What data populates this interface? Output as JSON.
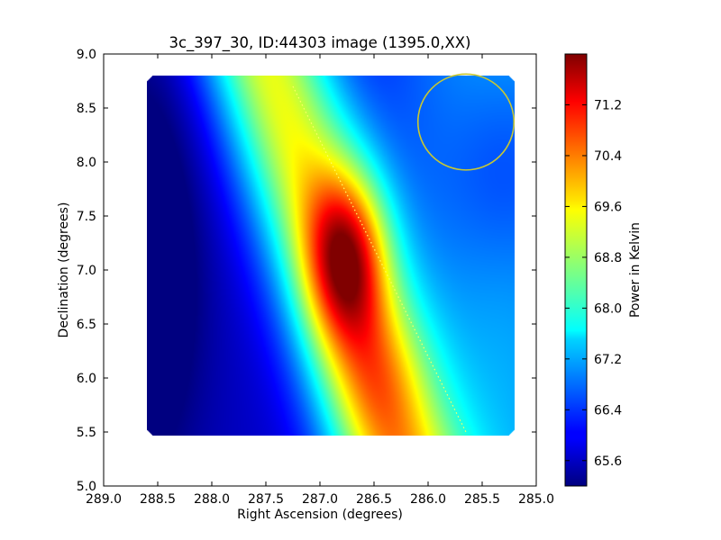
{
  "chart_data": {
    "type": "heatmap",
    "title": "3c_397_30, ID:44303 image (1395.0,XX)",
    "xlabel": "Right Ascension (degrees)",
    "ylabel": "Declination (degrees)",
    "x_inverted": true,
    "xlim": [
      289.0,
      285.0
    ],
    "ylim": [
      5.0,
      9.0
    ],
    "x_ticks": [
      "289.0",
      "288.5",
      "288.0",
      "287.5",
      "287.0",
      "286.5",
      "286.0",
      "285.5",
      "285.0"
    ],
    "y_ticks": [
      "9.0",
      "8.5",
      "8.0",
      "7.5",
      "7.0",
      "6.5",
      "6.0",
      "5.5",
      "5.0"
    ],
    "image_extent_ra": [
      288.6,
      285.2
    ],
    "image_extent_dec": [
      5.47,
      8.8
    ],
    "grid": false,
    "colormap": "jet",
    "colorbar": {
      "label": "Power in Kelvin",
      "range": [
        65.2,
        72.0
      ],
      "ticks": [
        "71.2",
        "70.4",
        "69.6",
        "68.8",
        "68.0",
        "67.2",
        "66.4",
        "65.6"
      ]
    },
    "features": {
      "peak": {
        "ra": 286.75,
        "dec": 7.13,
        "value": 71.8
      },
      "minimum": {
        "ra": 288.55,
        "dec": 7.0,
        "value": 65.3
      },
      "beam_circle": {
        "ra": 285.65,
        "dec": 8.37,
        "radius_deg": 0.37,
        "color": "#c8c832"
      },
      "dotted_line": {
        "start": {
          "ra": 287.25,
          "dec": 8.7
        },
        "end": {
          "ra": 285.65,
          "dec": 5.5
        },
        "color": "#ffff66"
      }
    }
  }
}
